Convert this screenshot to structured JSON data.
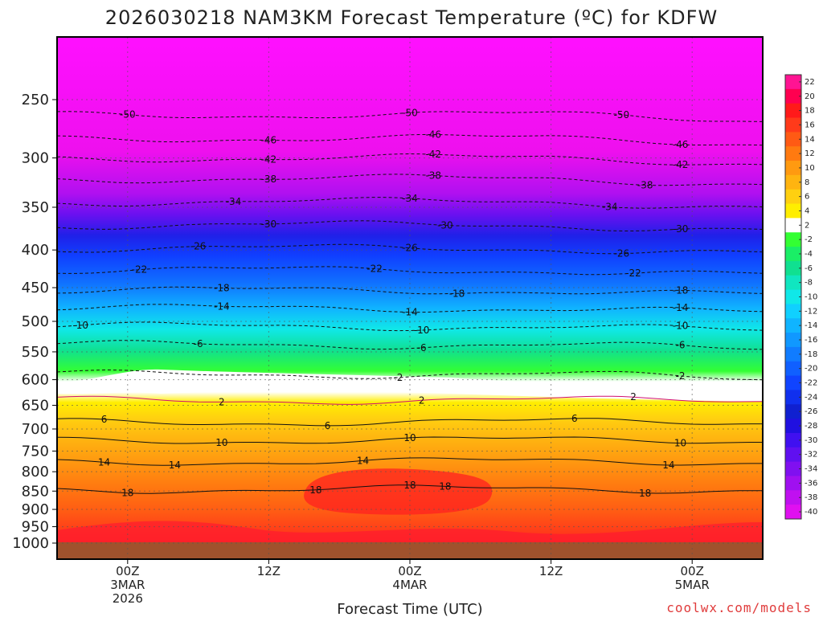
{
  "chart_data": {
    "type": "heatmap",
    "title": "2026030218 NAM3KM Forecast Temperature (ºC) for KDFW",
    "xlabel": "Forecast Time (UTC)",
    "ylabel": "",
    "credit": "coolwx.com/models",
    "x_range_hours": [
      -6,
      54
    ],
    "y_log_scale": true,
    "y_range_hpa": [
      200,
      1000
    ],
    "y_ticks": [
      250,
      300,
      350,
      400,
      450,
      500,
      550,
      600,
      650,
      700,
      750,
      800,
      850,
      900,
      950,
      1000
    ],
    "x_ticks": [
      {
        "hour": 0,
        "lines": [
          "00Z",
          "3MAR",
          "2026"
        ]
      },
      {
        "hour": 12,
        "lines": [
          "12Z"
        ]
      },
      {
        "hour": 24,
        "lines": [
          "00Z",
          "4MAR"
        ]
      },
      {
        "hour": 36,
        "lines": [
          "12Z"
        ]
      },
      {
        "hour": 48,
        "lines": [
          "00Z",
          "5MAR"
        ]
      }
    ],
    "grid": true,
    "colorbar": {
      "placement": "right",
      "levels": [
        "22",
        "20",
        "18",
        "16",
        "14",
        "12",
        "10",
        "8",
        "6",
        "4",
        "2",
        "-2",
        "-4",
        "-6",
        "-8",
        "-10",
        "-12",
        "-14",
        "-16",
        "-18",
        "-20",
        "-22",
        "-24",
        "-26",
        "-28",
        "-30",
        "-32",
        "-34",
        "-36",
        "-38",
        "-40"
      ],
      "colors": [
        "#ff1493",
        "#ff0050",
        "#ff1a1a",
        "#ff3a1a",
        "#ff5a14",
        "#ff7a10",
        "#ff9a10",
        "#ffb410",
        "#ffd010",
        "#ffee00",
        "#ffffff",
        "#33ff33",
        "#1aee66",
        "#10e090",
        "#10e6c0",
        "#10e8e8",
        "#10d0ff",
        "#10b4ff",
        "#1098ff",
        "#107cff",
        "#1060ff",
        "#1044ff",
        "#1030ee",
        "#1020d0",
        "#2010e0",
        "#4010f0",
        "#6010f0",
        "#8010f0",
        "#a010f0",
        "#c010f0",
        "#e010f0"
      ]
    },
    "contour_lines": [
      {
        "value": -50,
        "label": "-50",
        "labels_at_hours": [
          0,
          24,
          42
        ]
      },
      {
        "value": -46,
        "label": "-46",
        "labels_at_hours": [
          12,
          26,
          47
        ]
      },
      {
        "value": -42,
        "label": "-42",
        "labels_at_hours": [
          12,
          26,
          47
        ]
      },
      {
        "value": -38,
        "label": "-38",
        "labels_at_hours": [
          12,
          26,
          44
        ]
      },
      {
        "value": -34,
        "label": "-34",
        "labels_at_hours": [
          9,
          24,
          41
        ]
      },
      {
        "value": -30,
        "label": "-30",
        "labels_at_hours": [
          12,
          27,
          47
        ]
      },
      {
        "value": -26,
        "label": "-26",
        "labels_at_hours": [
          6,
          24,
          42
        ]
      },
      {
        "value": -22,
        "label": "-22",
        "labels_at_hours": [
          1,
          21,
          43
        ]
      },
      {
        "value": -18,
        "label": "-18",
        "labels_at_hours": [
          8,
          28,
          47
        ]
      },
      {
        "value": -14,
        "label": "-14",
        "labels_at_hours": [
          8,
          24,
          47
        ]
      },
      {
        "value": -10,
        "label": "-10",
        "labels_at_hours": [
          -4,
          25,
          47
        ]
      },
      {
        "value": -6,
        "label": "-6",
        "labels_at_hours": [
          6,
          25,
          47
        ]
      },
      {
        "value": -2,
        "label": "-2",
        "labels_at_hours": [
          23,
          47
        ]
      },
      {
        "value": 2,
        "label": "2",
        "labels_at_hours": [
          8,
          25,
          43
        ]
      },
      {
        "value": 6,
        "label": "6",
        "labels_at_hours": [
          -2,
          17,
          38
        ]
      },
      {
        "value": 10,
        "label": "10",
        "labels_at_hours": [
          8,
          24,
          47
        ]
      },
      {
        "value": 14,
        "label": "14",
        "labels_at_hours": [
          -2,
          4,
          20,
          46
        ]
      },
      {
        "value": 18,
        "label": "18",
        "labels_at_hours": [
          0,
          16,
          27,
          24,
          44
        ]
      }
    ],
    "surface_band": "below ~1000 hPa"
  }
}
